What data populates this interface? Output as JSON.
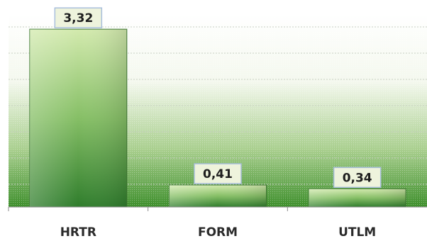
{
  "chart_data": {
    "type": "bar",
    "categories": [
      "HRTR",
      "FORM",
      "UTLM"
    ],
    "values": [
      3.32,
      0.41,
      0.34
    ],
    "value_labels": [
      "3,32",
      "0,41",
      "0,34"
    ],
    "title": "",
    "xlabel": "",
    "ylabel": "",
    "ylim": [
      0,
      3.6
    ],
    "grid": true,
    "colors": {
      "bar_top": "#cfe7a8",
      "bar_bottom": "#2e7d2a",
      "bar_edge": "#3f7a33",
      "label_fill": "#eef3dc",
      "label_border": "#a9bfdc",
      "gridline": "#c8cfc2",
      "background_bottom": "#3e8f2c"
    }
  }
}
